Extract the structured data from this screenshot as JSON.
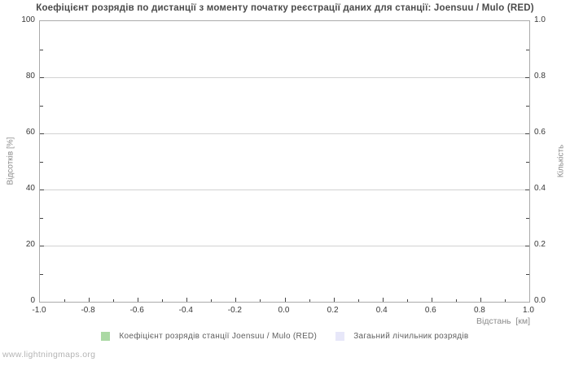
{
  "watermark": "www.lightningmaps.org",
  "chart_data": {
    "type": "line",
    "title": "Коефіцієнт розрядів по дистанції з моменту початку реєстрації даних для станції: Joensuu / Mulo (RED)",
    "xlabel": "Відстань  [км]",
    "ylabel_left": "Відсотків  [%]",
    "ylabel_right": "Кількість",
    "x_ticks": [
      "-1.0",
      "-0.8",
      "-0.6",
      "-0.4",
      "-0.2",
      "0.0",
      "0.2",
      "0.4",
      "0.6",
      "0.8",
      "1.0"
    ],
    "y_ticks_left": [
      "0",
      "20",
      "40",
      "60",
      "80",
      "100"
    ],
    "y_ticks_right": [
      "0.0",
      "0.2",
      "0.4",
      "0.6",
      "0.8",
      "1.0"
    ],
    "xlim": [
      -1.0,
      1.0
    ],
    "ylim_left": [
      0,
      100
    ],
    "ylim_right": [
      0.0,
      1.0
    ],
    "grid": "horizontal-major-only",
    "legend_position": "bottom",
    "series": [
      {
        "name": "Коефіцієнт розрядів станції Joensuu / Mulo (RED)",
        "color": "#abd9a4",
        "axis": "left",
        "values": []
      },
      {
        "name": "Загаьний лічильник розрядів",
        "color": "#e7e7f9",
        "axis": "right",
        "values": []
      }
    ],
    "note": "plot area is empty - no data points rendered"
  },
  "colors": {
    "title": "#4a4a4a",
    "tick_label": "#383838",
    "axis_title": "#8a8a8a",
    "plot_border": "#aaaaaa",
    "gridline": "#d2d2d2",
    "tick_mark": "#454545",
    "legend_text": "#5f5f5f",
    "watermark": "#b5b5b5"
  }
}
